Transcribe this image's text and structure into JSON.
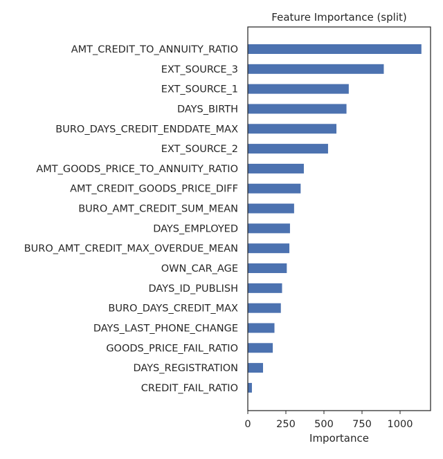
{
  "chart_data": {
    "type": "bar",
    "orientation": "horizontal",
    "title": "Feature Importance (split)",
    "xlabel": "Importance",
    "ylabel": "",
    "xlim": [
      0,
      1200
    ],
    "xticks": [
      0,
      250,
      500,
      750,
      1000
    ],
    "xtick_labels": [
      "0",
      "250",
      "500",
      "750",
      "1000"
    ],
    "grid": false,
    "bar_color": "#4c72b0",
    "categories": [
      "AMT_CREDIT_TO_ANNUITY_RATIO",
      "EXT_SOURCE_3",
      "EXT_SOURCE_1",
      "DAYS_BIRTH",
      "BURO_DAYS_CREDIT_ENDDATE_MAX",
      "EXT_SOURCE_2",
      "AMT_GOODS_PRICE_TO_ANNUITY_RATIO",
      "AMT_CREDIT_GOODS_PRICE_DIFF",
      "BURO_AMT_CREDIT_SUM_MEAN",
      "DAYS_EMPLOYED",
      "BURO_AMT_CREDIT_MAX_OVERDUE_MEAN",
      "OWN_CAR_AGE",
      "DAYS_ID_PUBLISH",
      "BURO_DAYS_CREDIT_MAX",
      "DAYS_LAST_PHONE_CHANGE",
      "GOODS_PRICE_FAIL_RATIO",
      "DAYS_REGISTRATION",
      "CREDIT_FAIL_RATIO"
    ],
    "values": [
      1140,
      893,
      663,
      648,
      582,
      527,
      368,
      347,
      304,
      277,
      273,
      256,
      225,
      217,
      175,
      164,
      100,
      27
    ]
  }
}
